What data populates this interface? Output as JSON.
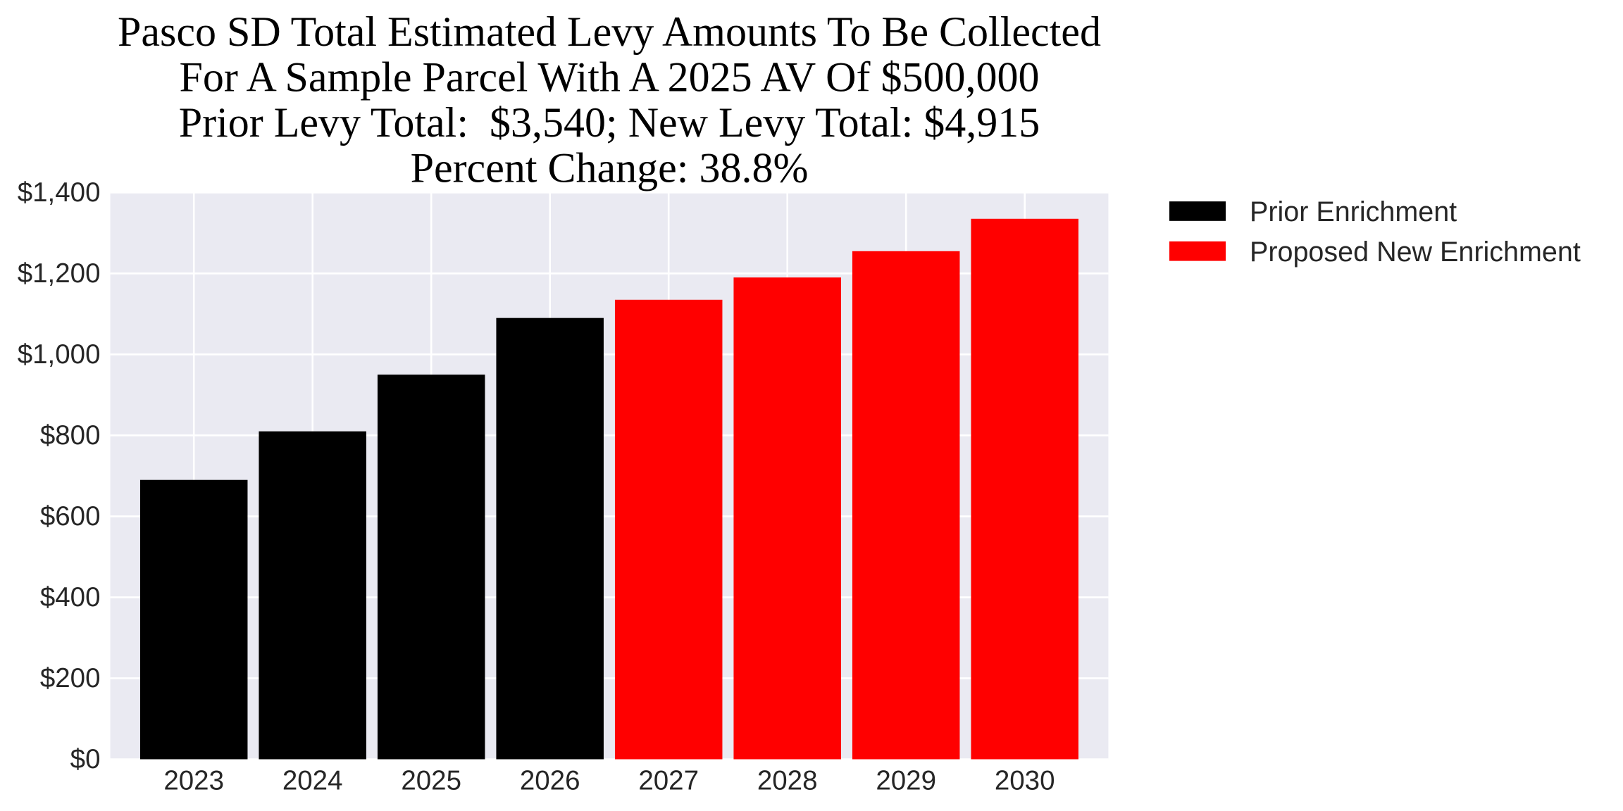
{
  "chart_data": {
    "type": "bar",
    "title_lines": [
      "Pasco SD Total Estimated Levy Amounts To Be Collected",
      "For A Sample Parcel With A 2025 AV Of $500,000",
      "Prior Levy Total:  $3,540; New Levy Total: $4,915",
      "Percent Change: 38.8%"
    ],
    "categories": [
      "2023",
      "2024",
      "2025",
      "2026",
      "2027",
      "2028",
      "2029",
      "2030"
    ],
    "values": [
      690,
      810,
      950,
      1090,
      1135,
      1190,
      1255,
      1335
    ],
    "bar_series_index": [
      0,
      0,
      0,
      0,
      1,
      1,
      1,
      1
    ],
    "series": [
      {
        "name": "Prior Enrichment",
        "color": "#000000"
      },
      {
        "name": "Proposed New Enrichment",
        "color": "#ff0000"
      }
    ],
    "xlabel": "",
    "ylabel": "",
    "ylim": [
      0,
      1400
    ],
    "ytick_step": 200,
    "ytick_labels": [
      "$0",
      "$200",
      "$400",
      "$600",
      "$800",
      "$1,000",
      "$1,200",
      "$1,400"
    ],
    "grid": true,
    "legend_position": "outside-upper-right"
  },
  "styles": {
    "figure_background": "#ffffff",
    "plot_background": "#eaeaf2",
    "grid_color": "#ffffff",
    "title_color": "#000000",
    "tick_label_color": "#262626",
    "prior_series_color": "#000000",
    "proposed_series_color": "#ff0000"
  }
}
